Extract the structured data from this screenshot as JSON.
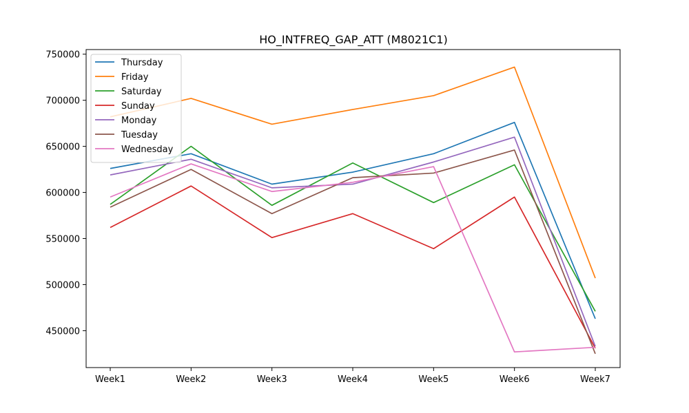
{
  "chart_data": {
    "type": "line",
    "title": "HO_INTFREQ_GAP_ATT (M8021C1)",
    "xlabel": "",
    "ylabel": "",
    "categories": [
      "Week1",
      "Week2",
      "Week3",
      "Week4",
      "Week5",
      "Week6",
      "Week7"
    ],
    "ylim": [
      410000,
      755000
    ],
    "yticks": [
      450000,
      500000,
      550000,
      600000,
      650000,
      700000,
      750000
    ],
    "ytick_labels": [
      "450000",
      "500000",
      "550000",
      "600000",
      "650000",
      "700000",
      "750000"
    ],
    "grid": false,
    "legend_position": "top-left",
    "series": [
      {
        "name": "Thursday",
        "color": "#1f77b4",
        "values": [
          626000,
          642000,
          609000,
          622000,
          642000,
          676000,
          463000
        ]
      },
      {
        "name": "Friday",
        "color": "#ff7f0e",
        "values": [
          682000,
          702000,
          674000,
          690000,
          705000,
          736000,
          507000
        ]
      },
      {
        "name": "Saturday",
        "color": "#2ca02c",
        "values": [
          587000,
          650000,
          586000,
          632000,
          589000,
          630000,
          471000
        ]
      },
      {
        "name": "Sunday",
        "color": "#d62728",
        "values": [
          562000,
          607000,
          551000,
          577000,
          539000,
          595000,
          431000
        ]
      },
      {
        "name": "Monday",
        "color": "#9467bd",
        "values": [
          619000,
          636000,
          605000,
          609000,
          633000,
          660000,
          433000
        ]
      },
      {
        "name": "Tuesday",
        "color": "#8c564b",
        "values": [
          584000,
          625000,
          577000,
          616000,
          621000,
          646000,
          425000
        ]
      },
      {
        "name": "Wednesday",
        "color": "#e377c2",
        "values": [
          595000,
          631000,
          601000,
          611000,
          628000,
          427000,
          432000
        ]
      }
    ]
  }
}
